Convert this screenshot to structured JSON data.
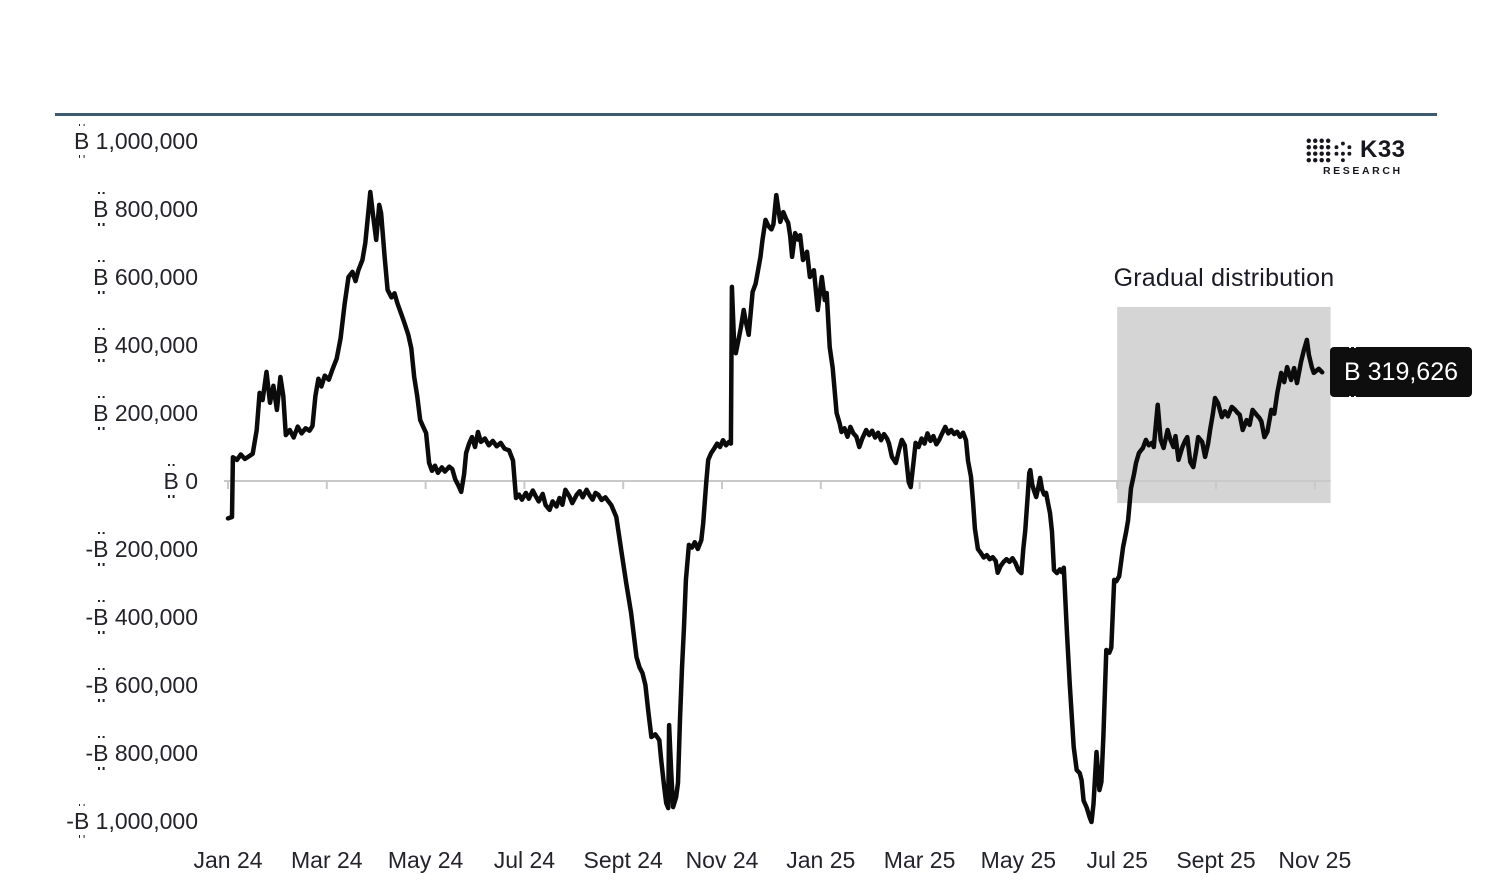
{
  "logo": {
    "brand": "K33",
    "sub": "RESEARCH"
  },
  "chart_data": {
    "type": "line",
    "title": "",
    "xlabel": "",
    "ylabel": "",
    "x_unit": "months since Jan 2024 (0 = Jan 24)",
    "points_value_unit": "thousand ₿",
    "ylim": [
      -1000000,
      1000000
    ],
    "grid": "zero line only, with small ticks at every second month",
    "legend": "none",
    "line_color": "#0b0b0b",
    "x_ticks": [
      "Jan 24",
      "Mar 24",
      "May 24",
      "Jul 24",
      "Sept 24",
      "Nov 24",
      "Jan 25",
      "Mar 25",
      "May 25",
      "Jul 25",
      "Sept 25",
      "Nov 25"
    ],
    "y_ticks": [
      "₿ 1,000,000",
      "₿ 800,000",
      "₿ 600,000",
      "₿ 400,000",
      "₿ 200,000",
      "₿ 0",
      "-₿ 200,000",
      "-₿ 400,000",
      "-₿ 600,000",
      "-₿ 800,000",
      "-₿ 1,000,000"
    ],
    "y_tick_values": [
      1000000,
      800000,
      600000,
      400000,
      200000,
      0,
      -200000,
      -400000,
      -600000,
      -800000,
      -1000000
    ],
    "annotation": {
      "label": "Gradual distribution",
      "fill": "#d5d5d5",
      "region": {
        "month_from": 18.0,
        "month_to": 22.32,
        "value_from": -65000,
        "value_to": 512000
      }
    },
    "last_value": 319626,
    "last_value_label": "₿ 319,626",
    "points": [
      [
        0,
        -110
      ],
      [
        0.08,
        -106
      ],
      [
        0.1,
        70
      ],
      [
        0.18,
        62
      ],
      [
        0.26,
        78
      ],
      [
        0.34,
        65
      ],
      [
        0.42,
        72
      ],
      [
        0.5,
        80
      ],
      [
        0.58,
        150
      ],
      [
        0.64,
        259
      ],
      [
        0.7,
        238
      ],
      [
        0.78,
        321
      ],
      [
        0.85,
        230
      ],
      [
        0.92,
        280
      ],
      [
        0.99,
        209
      ],
      [
        1.06,
        306
      ],
      [
        1.12,
        250
      ],
      [
        1.17,
        135
      ],
      [
        1.25,
        150
      ],
      [
        1.33,
        128
      ],
      [
        1.41,
        160
      ],
      [
        1.49,
        140
      ],
      [
        1.57,
        155
      ],
      [
        1.65,
        148
      ],
      [
        1.71,
        162
      ],
      [
        1.77,
        250
      ],
      [
        1.83,
        301
      ],
      [
        1.89,
        278
      ],
      [
        1.96,
        310
      ],
      [
        2.04,
        298
      ],
      [
        2.12,
        330
      ],
      [
        2.2,
        360
      ],
      [
        2.28,
        420
      ],
      [
        2.36,
        520
      ],
      [
        2.44,
        600
      ],
      [
        2.52,
        615
      ],
      [
        2.58,
        588
      ],
      [
        2.64,
        620
      ],
      [
        2.72,
        650
      ],
      [
        2.78,
        700
      ],
      [
        2.84,
        790
      ],
      [
        2.88,
        850
      ],
      [
        2.94,
        778
      ],
      [
        3.0,
        709
      ],
      [
        3.06,
        812
      ],
      [
        3.1,
        788
      ],
      [
        3.17,
        660
      ],
      [
        3.23,
        562
      ],
      [
        3.31,
        540
      ],
      [
        3.37,
        552
      ],
      [
        3.43,
        523
      ],
      [
        3.51,
        490
      ],
      [
        3.57,
        465
      ],
      [
        3.65,
        430
      ],
      [
        3.71,
        390
      ],
      [
        3.77,
        306
      ],
      [
        3.83,
        250
      ],
      [
        3.89,
        179
      ],
      [
        3.95,
        160
      ],
      [
        4.01,
        141
      ],
      [
        4.07,
        53
      ],
      [
        4.13,
        30
      ],
      [
        4.19,
        45
      ],
      [
        4.25,
        24
      ],
      [
        4.33,
        40
      ],
      [
        4.39,
        28
      ],
      [
        4.48,
        42
      ],
      [
        4.54,
        35
      ],
      [
        4.6,
        5
      ],
      [
        4.66,
        -12
      ],
      [
        4.72,
        -32
      ],
      [
        4.78,
        20
      ],
      [
        4.82,
        82
      ],
      [
        4.88,
        110
      ],
      [
        4.94,
        129
      ],
      [
        5.0,
        100
      ],
      [
        5.06,
        144
      ],
      [
        5.12,
        115
      ],
      [
        5.2,
        125
      ],
      [
        5.28,
        105
      ],
      [
        5.36,
        118
      ],
      [
        5.44,
        102
      ],
      [
        5.52,
        112
      ],
      [
        5.6,
        95
      ],
      [
        5.69,
        90
      ],
      [
        5.77,
        60
      ],
      [
        5.83,
        -50
      ],
      [
        5.89,
        -40
      ],
      [
        5.95,
        -55
      ],
      [
        6.03,
        -35
      ],
      [
        6.09,
        -52
      ],
      [
        6.17,
        -28
      ],
      [
        6.23,
        -45
      ],
      [
        6.29,
        -60
      ],
      [
        6.37,
        -38
      ],
      [
        6.43,
        -71
      ],
      [
        6.51,
        -85
      ],
      [
        6.57,
        -60
      ],
      [
        6.65,
        -75
      ],
      [
        6.71,
        -50
      ],
      [
        6.77,
        -70
      ],
      [
        6.83,
        -26
      ],
      [
        6.91,
        -45
      ],
      [
        6.97,
        -65
      ],
      [
        7.06,
        -40
      ],
      [
        7.12,
        -30
      ],
      [
        7.18,
        -48
      ],
      [
        7.26,
        -26
      ],
      [
        7.32,
        -42
      ],
      [
        7.38,
        -55
      ],
      [
        7.44,
        -35
      ],
      [
        7.5,
        -41
      ],
      [
        7.56,
        -56
      ],
      [
        7.64,
        -48
      ],
      [
        7.7,
        -60
      ],
      [
        7.76,
        -71
      ],
      [
        7.86,
        -106
      ],
      [
        7.96,
        -203
      ],
      [
        8.06,
        -300
      ],
      [
        8.16,
        -388
      ],
      [
        8.27,
        -518
      ],
      [
        8.33,
        -548
      ],
      [
        8.39,
        -565
      ],
      [
        8.45,
        -600
      ],
      [
        8.51,
        -680
      ],
      [
        8.57,
        -753
      ],
      [
        8.65,
        -745
      ],
      [
        8.73,
        -762
      ],
      [
        8.77,
        -821
      ],
      [
        8.83,
        -900
      ],
      [
        8.87,
        -947
      ],
      [
        8.91,
        -962
      ],
      [
        8.93,
        -718
      ],
      [
        8.97,
        -850
      ],
      [
        9.01,
        -959
      ],
      [
        9.07,
        -930
      ],
      [
        9.11,
        -888
      ],
      [
        9.15,
        -700
      ],
      [
        9.19,
        -550
      ],
      [
        9.23,
        -429
      ],
      [
        9.27,
        -291
      ],
      [
        9.33,
        -188
      ],
      [
        9.39,
        -196
      ],
      [
        9.45,
        -180
      ],
      [
        9.51,
        -200
      ],
      [
        9.58,
        -174
      ],
      [
        9.62,
        -124
      ],
      [
        9.68,
        -6
      ],
      [
        9.72,
        62
      ],
      [
        9.78,
        82
      ],
      [
        9.84,
        95
      ],
      [
        9.9,
        110
      ],
      [
        9.96,
        100
      ],
      [
        10.02,
        120
      ],
      [
        10.08,
        105
      ],
      [
        10.14,
        115
      ],
      [
        10.18,
        110
      ],
      [
        10.2,
        571
      ],
      [
        10.24,
        420
      ],
      [
        10.28,
        376
      ],
      [
        10.34,
        420
      ],
      [
        10.38,
        450
      ],
      [
        10.44,
        503
      ],
      [
        10.48,
        470
      ],
      [
        10.54,
        430
      ],
      [
        10.62,
        556
      ],
      [
        10.68,
        580
      ],
      [
        10.72,
        612
      ],
      [
        10.78,
        660
      ],
      [
        10.82,
        709
      ],
      [
        10.88,
        768
      ],
      [
        10.94,
        750
      ],
      [
        11.0,
        740
      ],
      [
        11.04,
        755
      ],
      [
        11.1,
        841
      ],
      [
        11.14,
        800
      ],
      [
        11.18,
        762
      ],
      [
        11.24,
        791
      ],
      [
        11.3,
        770
      ],
      [
        11.34,
        759
      ],
      [
        11.38,
        720
      ],
      [
        11.42,
        659
      ],
      [
        11.48,
        729
      ],
      [
        11.54,
        710
      ],
      [
        11.58,
        723
      ],
      [
        11.64,
        650
      ],
      [
        11.72,
        674
      ],
      [
        11.78,
        600
      ],
      [
        11.86,
        620
      ],
      [
        11.94,
        503
      ],
      [
        12.02,
        600
      ],
      [
        12.08,
        532
      ],
      [
        12.12,
        553
      ],
      [
        12.18,
        394
      ],
      [
        12.24,
        332
      ],
      [
        12.32,
        200
      ],
      [
        12.38,
        170
      ],
      [
        12.42,
        144
      ],
      [
        12.48,
        155
      ],
      [
        12.54,
        130
      ],
      [
        12.6,
        159
      ],
      [
        12.66,
        140
      ],
      [
        12.72,
        130
      ],
      [
        12.78,
        100
      ],
      [
        12.84,
        125
      ],
      [
        12.92,
        150
      ],
      [
        12.98,
        135
      ],
      [
        13.04,
        148
      ],
      [
        13.1,
        128
      ],
      [
        13.16,
        142
      ],
      [
        13.22,
        120
      ],
      [
        13.28,
        138
      ],
      [
        13.34,
        125
      ],
      [
        13.38,
        110
      ],
      [
        13.44,
        71
      ],
      [
        13.52,
        53
      ],
      [
        13.58,
        90
      ],
      [
        13.64,
        121
      ],
      [
        13.7,
        105
      ],
      [
        13.78,
        -3
      ],
      [
        13.82,
        -18
      ],
      [
        13.88,
        60
      ],
      [
        13.92,
        112
      ],
      [
        13.98,
        100
      ],
      [
        14.04,
        125
      ],
      [
        14.1,
        110
      ],
      [
        14.16,
        140
      ],
      [
        14.22,
        118
      ],
      [
        14.28,
        132
      ],
      [
        14.34,
        108
      ],
      [
        14.4,
        122
      ],
      [
        14.44,
        135
      ],
      [
        14.52,
        159
      ],
      [
        14.58,
        140
      ],
      [
        14.64,
        150
      ],
      [
        14.7,
        138
      ],
      [
        14.76,
        145
      ],
      [
        14.82,
        130
      ],
      [
        14.88,
        142
      ],
      [
        14.94,
        120
      ],
      [
        14.98,
        60
      ],
      [
        15.04,
        12
      ],
      [
        15.08,
        -60
      ],
      [
        15.12,
        -140
      ],
      [
        15.18,
        -200
      ],
      [
        15.24,
        -212
      ],
      [
        15.3,
        -225
      ],
      [
        15.36,
        -218
      ],
      [
        15.42,
        -230
      ],
      [
        15.48,
        -224
      ],
      [
        15.54,
        -235
      ],
      [
        15.58,
        -270
      ],
      [
        15.64,
        -250
      ],
      [
        15.7,
        -238
      ],
      [
        15.76,
        -230
      ],
      [
        15.82,
        -238
      ],
      [
        15.88,
        -227
      ],
      [
        15.94,
        -241
      ],
      [
        16.0,
        -262
      ],
      [
        16.06,
        -271
      ],
      [
        16.1,
        -200
      ],
      [
        16.14,
        -144
      ],
      [
        16.18,
        -60
      ],
      [
        16.22,
        24
      ],
      [
        16.24,
        32
      ],
      [
        16.28,
        -10
      ],
      [
        16.32,
        -30
      ],
      [
        16.36,
        -47
      ],
      [
        16.4,
        -20
      ],
      [
        16.44,
        9
      ],
      [
        16.48,
        -25
      ],
      [
        16.52,
        -40
      ],
      [
        16.56,
        -35
      ],
      [
        16.6,
        -65
      ],
      [
        16.64,
        -94
      ],
      [
        16.68,
        -150
      ],
      [
        16.72,
        -262
      ],
      [
        16.78,
        -271
      ],
      [
        16.84,
        -260
      ],
      [
        16.88,
        -268
      ],
      [
        16.92,
        -255
      ],
      [
        16.98,
        -438
      ],
      [
        17.04,
        -600
      ],
      [
        17.12,
        -782
      ],
      [
        17.18,
        -850
      ],
      [
        17.24,
        -859
      ],
      [
        17.28,
        -880
      ],
      [
        17.32,
        -940
      ],
      [
        17.38,
        -960
      ],
      [
        17.44,
        -988
      ],
      [
        17.48,
        -1003
      ],
      [
        17.52,
        -950
      ],
      [
        17.58,
        -797
      ],
      [
        17.64,
        -909
      ],
      [
        17.68,
        -885
      ],
      [
        17.72,
        -750
      ],
      [
        17.78,
        -497
      ],
      [
        17.84,
        -505
      ],
      [
        17.88,
        -490
      ],
      [
        17.94,
        -291
      ],
      [
        17.98,
        -295
      ],
      [
        18.04,
        -280
      ],
      [
        18.12,
        -194
      ],
      [
        18.18,
        -150
      ],
      [
        18.22,
        -115
      ],
      [
        18.28,
        -21
      ],
      [
        18.34,
        20
      ],
      [
        18.38,
        53
      ],
      [
        18.44,
        82
      ],
      [
        18.48,
        90
      ],
      [
        18.52,
        97
      ],
      [
        18.58,
        121
      ],
      [
        18.64,
        105
      ],
      [
        18.7,
        112
      ],
      [
        18.74,
        100
      ],
      [
        18.82,
        224
      ],
      [
        18.88,
        121
      ],
      [
        18.94,
        97
      ],
      [
        19.02,
        150
      ],
      [
        19.08,
        120
      ],
      [
        19.14,
        100
      ],
      [
        19.18,
        132
      ],
      [
        19.24,
        62
      ],
      [
        19.32,
        100
      ],
      [
        19.38,
        120
      ],
      [
        19.42,
        129
      ],
      [
        19.48,
        56
      ],
      [
        19.54,
        41
      ],
      [
        19.6,
        90
      ],
      [
        19.64,
        129
      ],
      [
        19.72,
        115
      ],
      [
        19.78,
        71
      ],
      [
        19.84,
        110
      ],
      [
        19.88,
        150
      ],
      [
        19.94,
        200
      ],
      [
        19.98,
        244
      ],
      [
        20.04,
        229
      ],
      [
        20.12,
        188
      ],
      [
        20.18,
        205
      ],
      [
        20.24,
        190
      ],
      [
        20.32,
        218
      ],
      [
        20.38,
        210
      ],
      [
        20.44,
        200
      ],
      [
        20.48,
        195
      ],
      [
        20.54,
        150
      ],
      [
        20.62,
        179
      ],
      [
        20.68,
        165
      ],
      [
        20.74,
        209
      ],
      [
        20.82,
        195
      ],
      [
        20.88,
        185
      ],
      [
        20.92,
        175
      ],
      [
        20.98,
        129
      ],
      [
        21.04,
        145
      ],
      [
        21.12,
        209
      ],
      [
        21.18,
        198
      ],
      [
        21.24,
        259
      ],
      [
        21.32,
        318
      ],
      [
        21.38,
        291
      ],
      [
        21.44,
        335
      ],
      [
        21.52,
        297
      ],
      [
        21.58,
        332
      ],
      [
        21.64,
        288
      ],
      [
        21.72,
        350
      ],
      [
        21.78,
        385
      ],
      [
        21.84,
        415
      ],
      [
        21.88,
        371
      ],
      [
        21.94,
        335
      ],
      [
        21.98,
        318
      ],
      [
        22.08,
        330
      ],
      [
        22.15,
        319.626
      ]
    ]
  }
}
